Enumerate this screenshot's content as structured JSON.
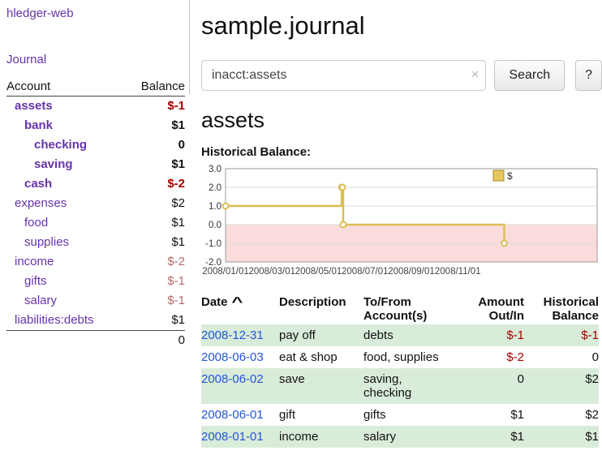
{
  "palette": {
    "purple": "#6633aa",
    "link_blue": "#2255dd",
    "negative": "#a40000",
    "negative_muted": "#b46a6a",
    "row_stripe_green": "#d9ecd9"
  },
  "app": {
    "title": "hledger-web"
  },
  "sidebar": {
    "journal_link": "Journal",
    "header": {
      "account": "Account",
      "balance": "Balance"
    },
    "accounts": [
      {
        "name": "assets",
        "balance": "$-1",
        "indent": 0,
        "bold": true,
        "negative": true
      },
      {
        "name": "bank",
        "balance": "$1",
        "indent": 1,
        "bold": true,
        "negative": false
      },
      {
        "name": "checking",
        "balance": "0",
        "indent": 2,
        "bold": true,
        "negative": false
      },
      {
        "name": "saving",
        "balance": "$1",
        "indent": 2,
        "bold": true,
        "negative": false
      },
      {
        "name": "cash",
        "balance": "$-2",
        "indent": 1,
        "bold": true,
        "negative": true
      },
      {
        "name": "expenses",
        "balance": "$2",
        "indent": 0,
        "bold": false,
        "negative": false
      },
      {
        "name": "food",
        "balance": "$1",
        "indent": 1,
        "bold": false,
        "negative": false
      },
      {
        "name": "supplies",
        "balance": "$1",
        "indent": 1,
        "bold": false,
        "negative": false
      },
      {
        "name": "income",
        "balance": "$-2",
        "indent": 0,
        "bold": false,
        "negative": true
      },
      {
        "name": "gifts",
        "balance": "$-1",
        "indent": 1,
        "bold": false,
        "negative": true
      },
      {
        "name": "salary",
        "balance": "$-1",
        "indent": 1,
        "bold": false,
        "negative": true
      },
      {
        "name": "liabilities:debts",
        "balance": "$1",
        "indent": 0,
        "bold": false,
        "negative": false
      }
    ],
    "total": "0"
  },
  "main": {
    "title": "sample.journal",
    "search": {
      "value": "inacct:assets",
      "clear_icon": "×",
      "button_label": "Search",
      "help_label": "?"
    },
    "account_heading": "assets",
    "chart_label": "Historical Balance:"
  },
  "chart_data": {
    "type": "line",
    "title": "Historical Balance",
    "step": true,
    "legend_position": "top-right",
    "legend": [
      {
        "name": "$",
        "color": "#e8c85e"
      }
    ],
    "x_tick_labels": [
      "2008/01/01",
      "2008/03/01",
      "2008/05/01",
      "2008/07/01",
      "2008/09/01",
      "2008/11/01"
    ],
    "y_ticks": [
      3,
      2,
      1,
      0,
      -1,
      -2
    ],
    "y_tick_labels": [
      "3.0",
      "2.0",
      "1.0",
      "0.0",
      "-1.0",
      "-2.0"
    ],
    "ylim": [
      -2,
      3
    ],
    "grid": true,
    "series": [
      {
        "name": "$",
        "points": [
          {
            "date": "2008-01-01",
            "value": 1
          },
          {
            "date": "2008-06-01",
            "value": 2
          },
          {
            "date": "2008-06-02",
            "value": 2
          },
          {
            "date": "2008-06-03",
            "value": 0
          },
          {
            "date": "2008-12-31",
            "value": -1
          }
        ]
      }
    ],
    "colors": {
      "line": "#dcbe54",
      "marker_fill": "#ffffff",
      "negative_region": "#fbdcdc",
      "grid": "#dddddd",
      "border": "#999999",
      "legend_swatch_border": "#a8872a"
    }
  },
  "table": {
    "headers": {
      "date": "Date",
      "sort_icon": "^",
      "description": "Description",
      "accounts": "To/From Account(s)",
      "amount": "Amount Out/In",
      "balance": "Historical Balance"
    },
    "rows": [
      {
        "date": "2008-12-31",
        "description": "pay off",
        "accounts": "debts",
        "amount": "$-1",
        "balance": "$-1"
      },
      {
        "date": "2008-06-03",
        "description": "eat & shop",
        "accounts": "food, supplies",
        "amount": "$-2",
        "balance": "0"
      },
      {
        "date": "2008-06-02",
        "description": "save",
        "accounts": "saving, checking",
        "amount": "0",
        "balance": "$2"
      },
      {
        "date": "2008-06-01",
        "description": "gift",
        "accounts": "gifts",
        "amount": "$1",
        "balance": "$2"
      },
      {
        "date": "2008-01-01",
        "description": "income",
        "accounts": "salary",
        "amount": "$1",
        "balance": "$1"
      }
    ]
  }
}
